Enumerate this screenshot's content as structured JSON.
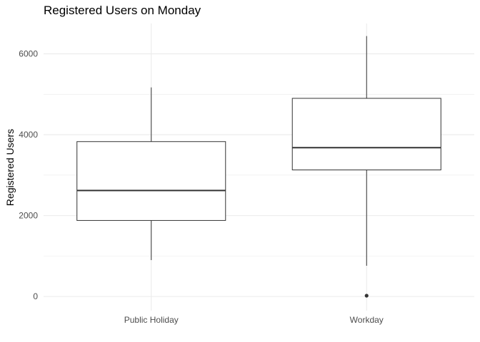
{
  "chart_data": {
    "type": "boxplot",
    "title": "Registered Users on Monday",
    "xlabel": "",
    "ylabel": "Registered Users",
    "ylim": [
      -350,
      6750
    ],
    "yticks": [
      0,
      2000,
      4000,
      6000
    ],
    "y_tick_labels": [
      "0",
      "2000",
      "4000",
      "6000"
    ],
    "grid": true,
    "categories": [
      "Public Holiday",
      "Workday"
    ],
    "boxes": [
      {
        "category": "Public Holiday",
        "min": 900,
        "q1": 1880,
        "median": 2620,
        "q3": 3830,
        "max": 5170,
        "outliers": []
      },
      {
        "category": "Workday",
        "min": 760,
        "q1": 3130,
        "median": 3680,
        "q3": 4900,
        "max": 6440,
        "outliers": [
          20
        ]
      }
    ],
    "colors": {
      "grid": "#ebebeb",
      "box_line": "#333333",
      "text": "#4d4d4d"
    }
  }
}
